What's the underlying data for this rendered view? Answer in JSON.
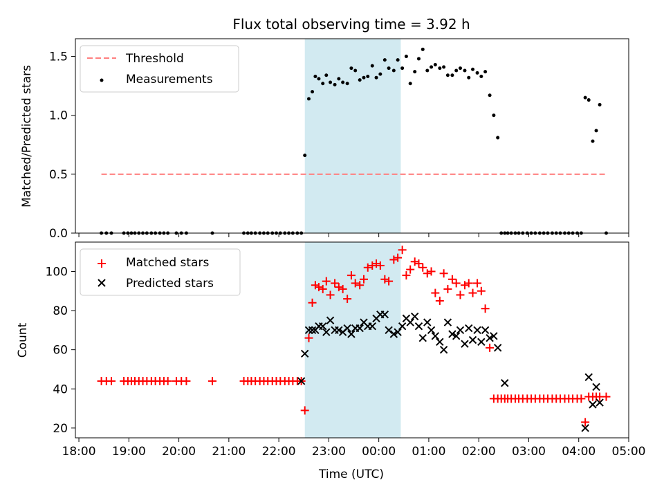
{
  "title": "Flux total observing time = 3.92 h",
  "colors": {
    "threshold": "#ff7f7f",
    "measurement": "#000000",
    "matched": "#ff0000",
    "predicted": "#000000",
    "shade_fill": "#add8e6",
    "shade_alpha": 0.55
  },
  "shaded_interval_hours": [
    22.52,
    24.44
  ],
  "x_axis": {
    "label": "Time (UTC)",
    "range_hours": [
      17.93,
      29.0
    ],
    "ticks": [
      18,
      19,
      20,
      21,
      22,
      23,
      24,
      25,
      26,
      27,
      28,
      29
    ],
    "tick_labels": [
      "18:00",
      "19:00",
      "20:00",
      "21:00",
      "22:00",
      "23:00",
      "00:00",
      "01:00",
      "02:00",
      "03:00",
      "04:00",
      "05:00"
    ]
  },
  "chart_data": [
    {
      "type": "scatter",
      "panel": "top",
      "ylabel": "Matched/Predicted stars",
      "ylim": [
        0,
        1.65
      ],
      "yticks": [
        0,
        0.5,
        1.0,
        1.5
      ],
      "ytick_labels": [
        "0.0",
        "0.5",
        "1.0",
        "1.5"
      ],
      "legend": {
        "position": "upper-left",
        "entries": [
          "Threshold",
          "Measurements"
        ]
      },
      "series": [
        {
          "name": "Threshold",
          "style": "dashed-line",
          "x": [
            18.45,
            28.55
          ],
          "y": [
            0.5,
            0.5
          ]
        },
        {
          "name": "Measurements",
          "style": "dot",
          "x": [
            18.45,
            18.55,
            18.65,
            18.9,
            18.98,
            19.05,
            19.12,
            19.2,
            19.28,
            19.36,
            19.45,
            19.53,
            19.62,
            19.7,
            19.78,
            19.95,
            20.05,
            20.15,
            20.67,
            21.3,
            21.38,
            21.45,
            21.53,
            21.62,
            21.7,
            21.78,
            21.87,
            21.95,
            22.03,
            22.12,
            22.2,
            22.28,
            22.37,
            22.45,
            22.52,
            22.6,
            22.67,
            22.73,
            22.8,
            22.88,
            22.95,
            23.03,
            23.12,
            23.2,
            23.28,
            23.37,
            23.45,
            23.53,
            23.62,
            23.7,
            23.78,
            23.87,
            23.95,
            24.03,
            24.12,
            24.2,
            24.3,
            24.38,
            24.47,
            24.55,
            24.63,
            24.72,
            24.8,
            24.88,
            24.97,
            25.05,
            25.13,
            25.22,
            25.3,
            25.38,
            25.47,
            25.55,
            25.63,
            25.72,
            25.8,
            25.88,
            25.97,
            26.05,
            26.13,
            26.22,
            26.3,
            26.38,
            26.45,
            26.52,
            26.58,
            26.65,
            26.73,
            26.8,
            26.88,
            26.97,
            27.05,
            27.13,
            27.22,
            27.3,
            27.38,
            27.47,
            27.55,
            27.63,
            27.72,
            27.8,
            27.88,
            27.97,
            28.05,
            28.13,
            28.2,
            28.28,
            28.35,
            28.42,
            28.55
          ],
          "y": [
            0,
            0,
            0,
            0,
            0,
            0,
            0,
            0,
            0,
            0,
            0,
            0,
            0,
            0,
            0,
            0,
            0,
            0,
            0,
            0,
            0,
            0,
            0,
            0,
            0,
            0,
            0,
            0,
            0,
            0,
            0,
            0,
            0,
            0,
            0.66,
            1.14,
            1.2,
            1.33,
            1.31,
            1.27,
            1.34,
            1.28,
            1.26,
            1.31,
            1.28,
            1.27,
            1.4,
            1.38,
            1.3,
            1.32,
            1.33,
            1.42,
            1.32,
            1.35,
            1.47,
            1.4,
            1.38,
            1.47,
            1.4,
            1.5,
            1.27,
            1.37,
            1.48,
            1.56,
            1.38,
            1.41,
            1.43,
            1.4,
            1.41,
            1.34,
            1.34,
            1.38,
            1.4,
            1.38,
            1.32,
            1.39,
            1.36,
            1.33,
            1.37,
            1.17,
            1.0,
            0.81,
            0,
            0,
            0,
            0,
            0,
            0,
            0,
            0,
            0,
            0,
            0,
            0,
            0,
            0,
            0,
            0,
            0,
            0,
            0,
            0,
            0,
            1.15,
            1.13,
            0.78,
            0.87,
            1.09,
            0
          ]
        }
      ]
    },
    {
      "type": "scatter",
      "panel": "bottom",
      "ylabel": "Count",
      "xlabel": "Time (UTC)",
      "ylim": [
        15,
        115
      ],
      "yticks": [
        20,
        40,
        60,
        80,
        100
      ],
      "ytick_labels": [
        "20",
        "40",
        "60",
        "80",
        "100"
      ],
      "legend": {
        "position": "upper-left",
        "entries": [
          "Matched stars",
          "Predicted stars"
        ]
      },
      "series": [
        {
          "name": "Matched stars",
          "style": "plus",
          "x": [
            18.45,
            18.55,
            18.65,
            18.9,
            18.98,
            19.05,
            19.12,
            19.2,
            19.28,
            19.36,
            19.45,
            19.53,
            19.62,
            19.7,
            19.78,
            19.95,
            20.05,
            20.15,
            20.67,
            21.3,
            21.38,
            21.45,
            21.53,
            21.62,
            21.7,
            21.78,
            21.87,
            21.95,
            22.03,
            22.12,
            22.2,
            22.28,
            22.37,
            22.45,
            22.52,
            22.6,
            22.67,
            22.73,
            22.8,
            22.88,
            22.95,
            23.03,
            23.12,
            23.2,
            23.28,
            23.37,
            23.45,
            23.53,
            23.62,
            23.7,
            23.78,
            23.87,
            23.95,
            24.03,
            24.12,
            24.2,
            24.3,
            24.38,
            24.47,
            24.55,
            24.63,
            24.72,
            24.8,
            24.88,
            24.97,
            25.05,
            25.13,
            25.22,
            25.3,
            25.38,
            25.47,
            25.55,
            25.63,
            25.72,
            25.8,
            25.88,
            25.97,
            26.05,
            26.13,
            26.22,
            26.3,
            26.38,
            26.45,
            26.52,
            26.58,
            26.65,
            26.73,
            26.8,
            26.88,
            26.97,
            27.05,
            27.13,
            27.22,
            27.3,
            27.38,
            27.47,
            27.55,
            27.63,
            27.72,
            27.8,
            27.88,
            27.97,
            28.05,
            28.13,
            28.2,
            28.28,
            28.35,
            28.42,
            28.55
          ],
          "y": [
            44,
            44,
            44,
            44,
            44,
            44,
            44,
            44,
            44,
            44,
            44,
            44,
            44,
            44,
            44,
            44,
            44,
            44,
            44,
            44,
            44,
            44,
            44,
            44,
            44,
            44,
            44,
            44,
            44,
            44,
            44,
            44,
            44,
            44,
            29,
            66,
            84,
            93,
            92,
            91,
            95,
            88,
            94,
            92,
            91,
            86,
            98,
            94,
            93,
            96,
            102,
            103,
            104,
            103,
            96,
            95,
            106,
            107,
            111,
            98,
            101,
            105,
            104,
            102,
            99,
            100,
            89,
            85,
            99,
            91,
            96,
            94,
            88,
            93,
            94,
            89,
            94,
            90,
            81,
            61,
            35,
            35,
            35,
            35,
            35,
            35,
            35,
            35,
            35,
            35,
            35,
            35,
            35,
            35,
            35,
            35,
            35,
            35,
            35,
            35,
            35,
            35,
            35,
            23,
            36,
            36,
            36,
            36,
            36
          ]
        },
        {
          "name": "Predicted stars",
          "style": "x",
          "x": [
            22.45,
            22.52,
            22.6,
            22.67,
            22.73,
            22.8,
            22.88,
            22.95,
            23.03,
            23.12,
            23.2,
            23.28,
            23.37,
            23.45,
            23.53,
            23.62,
            23.7,
            23.78,
            23.87,
            23.95,
            24.03,
            24.12,
            24.2,
            24.3,
            24.38,
            24.47,
            24.55,
            24.63,
            24.72,
            24.8,
            24.88,
            24.97,
            25.05,
            25.13,
            25.22,
            25.3,
            25.38,
            25.47,
            25.55,
            25.63,
            25.72,
            25.8,
            25.88,
            25.97,
            26.05,
            26.13,
            26.22,
            26.3,
            26.38,
            26.52,
            28.13,
            28.2,
            28.28,
            28.35,
            28.42
          ],
          "y": [
            44,
            58,
            70,
            70,
            70,
            72,
            72,
            69,
            75,
            70,
            70,
            69,
            71,
            68,
            71,
            71,
            74,
            72,
            72,
            76,
            78,
            78,
            70,
            68,
            69,
            72,
            76,
            74,
            77,
            72,
            66,
            74,
            70,
            67,
            64,
            60,
            74,
            68,
            67,
            70,
            63,
            71,
            65,
            70,
            64,
            70,
            66,
            67,
            61,
            43,
            20,
            46,
            32,
            41,
            33
          ]
        }
      ]
    }
  ]
}
